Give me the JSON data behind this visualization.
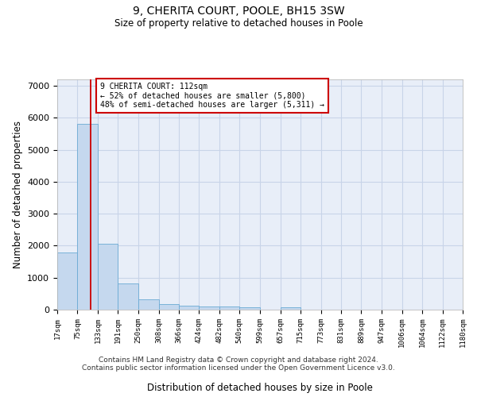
{
  "title": "9, CHERITA COURT, POOLE, BH15 3SW",
  "subtitle": "Size of property relative to detached houses in Poole",
  "xlabel": "Distribution of detached houses by size in Poole",
  "ylabel": "Number of detached properties",
  "bar_color": "#c5d8ee",
  "bar_edge_color": "#6aaad4",
  "grid_color": "#c8d4e8",
  "background_color": "#e8eef8",
  "red_line_x": 112,
  "annotation_text": "9 CHERITA COURT: 112sqm\n← 52% of detached houses are smaller (5,800)\n48% of semi-detached houses are larger (5,311) →",
  "annotation_box_color": "#ffffff",
  "annotation_border_color": "#cc0000",
  "bin_edges": [
    17,
    75,
    133,
    191,
    250,
    308,
    366,
    424,
    482,
    540,
    599,
    657,
    715,
    773,
    831,
    889,
    947,
    1006,
    1064,
    1122,
    1180
  ],
  "bar_heights": [
    1800,
    5800,
    2050,
    820,
    330,
    185,
    120,
    110,
    95,
    80,
    0,
    80,
    0,
    0,
    0,
    0,
    0,
    0,
    0,
    0
  ],
  "ylim": [
    0,
    7200
  ],
  "yticks": [
    0,
    1000,
    2000,
    3000,
    4000,
    5000,
    6000,
    7000
  ],
  "tick_labels": [
    "17sqm",
    "75sqm",
    "133sqm",
    "191sqm",
    "250sqm",
    "308sqm",
    "366sqm",
    "424sqm",
    "482sqm",
    "540sqm",
    "599sqm",
    "657sqm",
    "715sqm",
    "773sqm",
    "831sqm",
    "889sqm",
    "947sqm",
    "1006sqm",
    "1064sqm",
    "1122sqm",
    "1180sqm"
  ],
  "footer_line1": "Contains HM Land Registry data © Crown copyright and database right 2024.",
  "footer_line2": "Contains public sector information licensed under the Open Government Licence v3.0."
}
